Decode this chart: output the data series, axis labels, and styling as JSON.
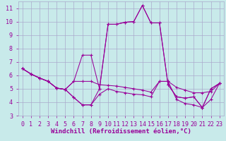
{
  "background_color": "#c8eaea",
  "grid_color": "#aaaacc",
  "line_color": "#990099",
  "xlim": [
    -0.5,
    23.5
  ],
  "ylim": [
    3,
    11.5
  ],
  "yticks": [
    3,
    4,
    5,
    6,
    7,
    8,
    9,
    10,
    11
  ],
  "xticks": [
    0,
    1,
    2,
    3,
    4,
    5,
    6,
    7,
    8,
    9,
    10,
    11,
    12,
    13,
    14,
    15,
    16,
    17,
    18,
    19,
    20,
    21,
    22,
    23
  ],
  "xlabel": "Windchill (Refroidissement éolien,°C)",
  "line1_x": [
    0,
    1,
    2,
    3,
    4,
    5,
    6,
    7,
    8,
    9,
    10,
    11,
    12,
    13,
    14,
    15,
    16,
    17,
    18,
    19,
    20,
    21,
    22,
    23
  ],
  "line1_y": [
    6.5,
    6.1,
    5.8,
    5.55,
    5.05,
    4.95,
    5.55,
    5.55,
    5.55,
    5.3,
    5.25,
    5.2,
    5.1,
    5.0,
    4.9,
    4.75,
    5.55,
    5.55,
    5.1,
    4.9,
    4.7,
    4.7,
    4.8,
    5.4
  ],
  "line2_x": [
    0,
    1,
    2,
    3,
    4,
    5,
    6,
    7,
    8,
    9,
    10,
    11,
    12,
    13,
    14,
    15,
    16,
    17,
    18,
    19,
    20,
    21,
    22,
    23
  ],
  "line2_y": [
    6.5,
    6.1,
    5.8,
    5.55,
    5.05,
    4.95,
    4.35,
    3.8,
    3.8,
    5.0,
    9.8,
    9.8,
    9.95,
    10.0,
    11.2,
    9.9,
    9.9,
    5.3,
    4.4,
    4.3,
    4.4,
    3.6,
    5.0,
    5.4
  ],
  "line3_x": [
    0,
    1,
    2,
    3,
    4,
    5,
    6,
    7,
    8,
    9,
    10,
    11,
    12,
    13,
    14,
    15,
    16,
    17,
    18,
    19,
    20,
    21,
    22,
    23
  ],
  "line3_y": [
    6.5,
    6.1,
    5.8,
    5.55,
    5.05,
    4.95,
    5.55,
    7.5,
    7.5,
    5.0,
    9.8,
    9.8,
    9.95,
    10.0,
    11.2,
    9.9,
    9.9,
    5.3,
    4.4,
    4.3,
    4.4,
    3.6,
    5.0,
    5.4
  ],
  "line4_x": [
    0,
    1,
    2,
    3,
    4,
    5,
    6,
    7,
    8,
    9,
    10,
    11,
    12,
    13,
    14,
    15,
    16,
    17,
    18,
    19,
    20,
    21,
    22,
    23
  ],
  "line4_y": [
    6.5,
    6.1,
    5.8,
    5.55,
    5.05,
    4.95,
    4.35,
    3.8,
    3.8,
    4.6,
    5.0,
    4.8,
    4.7,
    4.6,
    4.55,
    4.4,
    5.55,
    5.55,
    4.2,
    3.9,
    3.8,
    3.6,
    4.2,
    5.4
  ],
  "tick_fontsize": 6,
  "label_fontsize": 6.5
}
